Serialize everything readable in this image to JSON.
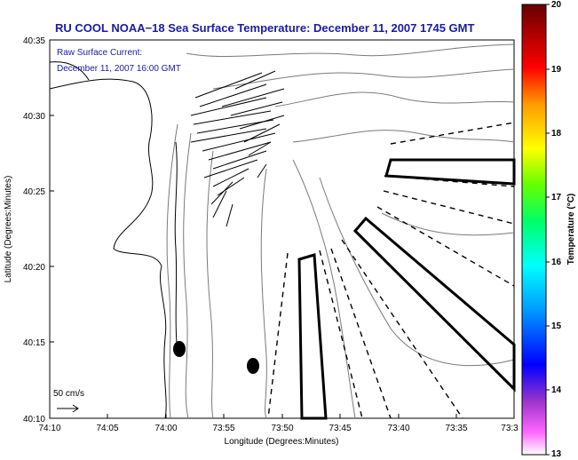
{
  "title": "RU COOL  NOAA−18  Sea Surface Temperature:  December 11, 2007 1745 GMT",
  "annotation": {
    "line1": "Raw Surface Current:",
    "line2": "December 11, 2007 16:00 GMT"
  },
  "scale_label": "50 cm/s",
  "axes": {
    "xlabel": "Longitude (Degrees:Minutes)",
    "ylabel": "Latitude (Degrees:Minutes)",
    "x_ticks": [
      "74:10",
      "74:05",
      "74:00",
      "73:55",
      "73:50",
      "73:45",
      "73:40",
      "73:35",
      "73:3"
    ],
    "y_ticks": [
      "40:35",
      "40:30",
      "40:25",
      "40:20",
      "40:15",
      "40:10"
    ]
  },
  "colorbar": {
    "label": "Temperature (°C)",
    "ticks": [
      "20",
      "19",
      "18",
      "17",
      "16",
      "15",
      "14",
      "13"
    ],
    "range": [
      13,
      20
    ],
    "colors": [
      "#ff66ff",
      "#9933cc",
      "#0000ff",
      "#0099ff",
      "#00ffff",
      "#00ff66",
      "#66ff00",
      "#ffff00",
      "#ff9900",
      "#ff0000",
      "#aa0000",
      "#660000"
    ]
  }
}
